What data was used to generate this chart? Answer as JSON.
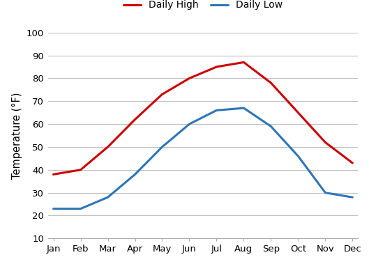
{
  "months": [
    "Jan",
    "Feb",
    "Mar",
    "Apr",
    "May",
    "Jun",
    "Jul",
    "Aug",
    "Sep",
    "Oct",
    "Nov",
    "Dec"
  ],
  "daily_high": [
    38,
    40,
    50,
    62,
    73,
    80,
    85,
    87,
    78,
    65,
    52,
    43
  ],
  "daily_low": [
    23,
    23,
    28,
    38,
    50,
    60,
    66,
    67,
    59,
    46,
    30,
    28
  ],
  "high_color": "#cc0000",
  "low_color": "#2e75b6",
  "ylabel": "Temperature (°F)",
  "ylim_min": 10,
  "ylim_max": 100,
  "yticks": [
    10,
    20,
    30,
    40,
    50,
    60,
    70,
    80,
    90,
    100
  ],
  "legend_high": "Daily High",
  "legend_low": "Daily Low",
  "line_width": 2.2,
  "grid_color": "#c0c0c0",
  "background_color": "#ffffff",
  "tick_label_fontsize": 9.5,
  "ylabel_fontsize": 10.5
}
